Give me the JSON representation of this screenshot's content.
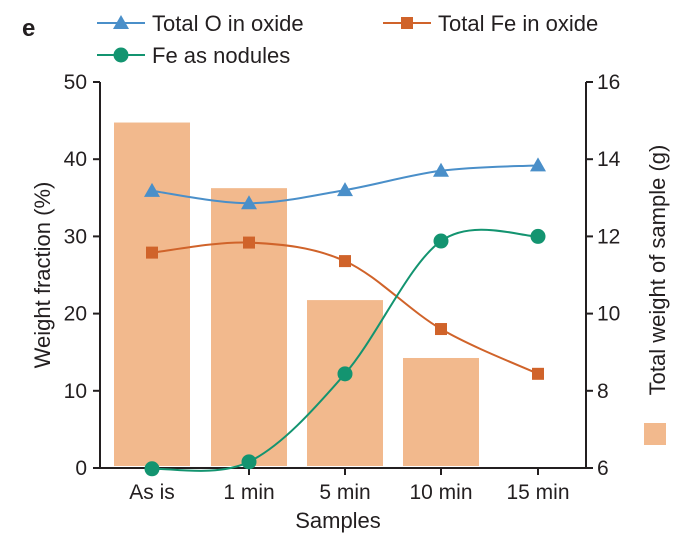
{
  "panel_label": "e",
  "chart_data": {
    "type": "bar+line",
    "xlabel": "Samples",
    "ylabel_left": "Weight fraction (%)",
    "ylabel_right": "Total weight of sample (g)",
    "categories": [
      "As is",
      "1 min",
      "5 min",
      "10 min",
      "15 min"
    ],
    "ylim_left": [
      0,
      50
    ],
    "ylim_right": [
      6,
      16
    ],
    "yticks_left": [
      0,
      10,
      20,
      30,
      40,
      50
    ],
    "yticks_right": [
      6,
      8,
      10,
      12,
      14,
      16
    ],
    "bars": {
      "axis": "right",
      "color": "#f2b98d",
      "values": [
        14.95,
        13.25,
        10.35,
        8.85,
        6.05
      ]
    },
    "series": [
      {
        "name": "Total O in oxide",
        "axis": "left",
        "color": "#4a8fc9",
        "marker": "triangle",
        "values": [
          35.9,
          34.3,
          36.0,
          38.5,
          39.2
        ]
      },
      {
        "name": "Total Fe in oxide",
        "axis": "left",
        "color": "#d0632a",
        "marker": "square",
        "values": [
          27.9,
          29.2,
          26.8,
          18.0,
          12.2
        ]
      },
      {
        "name": "Fe as nodules",
        "axis": "left",
        "color": "#139470",
        "marker": "circle",
        "values": [
          -0.1,
          0.8,
          12.2,
          29.4,
          30.0
        ]
      }
    ],
    "legend_position": "top",
    "grid": false
  }
}
